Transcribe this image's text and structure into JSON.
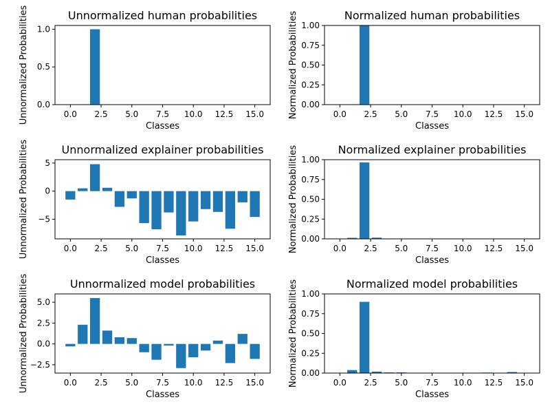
{
  "chart_data": [
    {
      "type": "bar",
      "title": "Unnormalized human probabilities",
      "xlabel": "Classes",
      "ylabel": "Unnormalized Probabilities",
      "x": [
        0,
        1,
        2,
        3,
        4,
        5,
        6,
        7,
        8,
        9,
        10,
        11,
        12,
        13,
        14,
        15
      ],
      "values": [
        0,
        0,
        1.0,
        0,
        0,
        0,
        0,
        0,
        0,
        0,
        0,
        0,
        0,
        0,
        0,
        0
      ],
      "xlim": [
        -1.25,
        16.25
      ],
      "ylim": [
        0,
        1.05
      ],
      "xticks": [
        0,
        2.5,
        5,
        7.5,
        10,
        12.5,
        15
      ],
      "xtick_labels": [
        "0.0",
        "2.5",
        "5.0",
        "7.5",
        "10.0",
        "12.5",
        "15.0"
      ],
      "yticks": [
        0,
        0.5,
        1.0
      ],
      "ytick_labels": [
        "0.0",
        "0.5",
        "1.0"
      ],
      "color": "#1f77b4",
      "grid": false
    },
    {
      "type": "bar",
      "title": "Normalized human probabilities",
      "xlabel": "Classes",
      "ylabel": "Normalized Probabilities",
      "x": [
        0,
        1,
        2,
        3,
        4,
        5,
        6,
        7,
        8,
        9,
        10,
        11,
        12,
        13,
        14,
        15
      ],
      "values": [
        0,
        0,
        1.0,
        0,
        0,
        0,
        0,
        0,
        0,
        0,
        0,
        0,
        0,
        0,
        0,
        0
      ],
      "xlim": [
        -1.25,
        16.25
      ],
      "ylim": [
        0,
        1.0
      ],
      "xticks": [
        0,
        2.5,
        5,
        7.5,
        10,
        12.5,
        15
      ],
      "xtick_labels": [
        "0.0",
        "2.5",
        "5.0",
        "7.5",
        "10.0",
        "12.5",
        "15.0"
      ],
      "yticks": [
        0,
        0.25,
        0.5,
        0.75,
        1.0
      ],
      "ytick_labels": [
        "0.00",
        "0.25",
        "0.50",
        "0.75",
        "1.00"
      ],
      "color": "#1f77b4",
      "grid": false
    },
    {
      "type": "bar",
      "title": "Unnormalized explainer probabilities",
      "xlabel": "Classes",
      "ylabel": "Unnormalized Probabilities",
      "x": [
        0,
        1,
        2,
        3,
        4,
        5,
        6,
        7,
        8,
        9,
        10,
        11,
        12,
        13,
        14,
        15
      ],
      "values": [
        -1.5,
        0.5,
        4.8,
        0.6,
        -2.8,
        -1.3,
        -5.7,
        -6.8,
        -3.8,
        -7.9,
        -5.4,
        -3.2,
        -3.7,
        -6.7,
        -2.0,
        -4.6
      ],
      "xlim": [
        -1.25,
        16.25
      ],
      "ylim": [
        -8.5,
        5.6
      ],
      "xticks": [
        0,
        2.5,
        5,
        7.5,
        10,
        12.5,
        15
      ],
      "xtick_labels": [
        "0.0",
        "2.5",
        "5.0",
        "7.5",
        "10.0",
        "12.5",
        "15.0"
      ],
      "yticks": [
        -5,
        0,
        5
      ],
      "ytick_labels": [
        "−5",
        "0",
        "5"
      ],
      "color": "#1f77b4",
      "grid": false
    },
    {
      "type": "bar",
      "title": "Normalized explainer probabilities",
      "xlabel": "Classes",
      "ylabel": "Normalized Probabilities",
      "x": [
        0,
        1,
        2,
        3,
        4,
        5,
        6,
        7,
        8,
        9,
        10,
        11,
        12,
        13,
        14,
        15
      ],
      "values": [
        0.002,
        0.013,
        0.965,
        0.015,
        0,
        0,
        0,
        0,
        0,
        0,
        0,
        0,
        0,
        0,
        0,
        0
      ],
      "xlim": [
        -1.25,
        16.25
      ],
      "ylim": [
        0,
        1.0
      ],
      "xticks": [
        0,
        2.5,
        5,
        7.5,
        10,
        12.5,
        15
      ],
      "xtick_labels": [
        "0.0",
        "2.5",
        "5.0",
        "7.5",
        "10.0",
        "12.5",
        "15.0"
      ],
      "yticks": [
        0,
        0.25,
        0.5,
        0.75,
        1.0
      ],
      "ytick_labels": [
        "0.00",
        "0.25",
        "0.50",
        "0.75",
        "1.00"
      ],
      "color": "#1f77b4",
      "grid": false
    },
    {
      "type": "bar",
      "title": "Unnormalized model probabilities",
      "xlabel": "Classes",
      "ylabel": "Unnormalized Probabilities",
      "x": [
        0,
        1,
        2,
        3,
        4,
        5,
        6,
        7,
        8,
        9,
        10,
        11,
        12,
        13,
        14,
        15
      ],
      "values": [
        -0.3,
        2.3,
        5.5,
        1.6,
        0.8,
        0.7,
        -1.0,
        -1.9,
        -0.2,
        -2.9,
        -1.6,
        -0.8,
        0.4,
        -2.3,
        1.2,
        -1.8
      ],
      "xlim": [
        -1.25,
        16.25
      ],
      "ylim": [
        -3.5,
        6.0
      ],
      "xticks": [
        0,
        2.5,
        5,
        7.5,
        10,
        12.5,
        15
      ],
      "xtick_labels": [
        "0.0",
        "2.5",
        "5.0",
        "7.5",
        "10.0",
        "12.5",
        "15.0"
      ],
      "yticks": [
        -2.5,
        0,
        2.5,
        5.0
      ],
      "ytick_labels": [
        "−2.5",
        "0.0",
        "2.5",
        "5.0"
      ],
      "color": "#1f77b4",
      "grid": false
    },
    {
      "type": "bar",
      "title": "Normalized model probabilities",
      "xlabel": "Classes",
      "ylabel": "Normalized Probabilities",
      "x": [
        0,
        1,
        2,
        3,
        4,
        5,
        6,
        7,
        8,
        9,
        10,
        11,
        12,
        13,
        14,
        15
      ],
      "values": [
        0.003,
        0.038,
        0.9,
        0.019,
        0.008,
        0.008,
        0.001,
        0.0006,
        0.003,
        0.0002,
        0.0008,
        0.002,
        0.006,
        0.0004,
        0.013,
        0.0006
      ],
      "xlim": [
        -1.25,
        16.25
      ],
      "ylim": [
        0,
        1.0
      ],
      "xticks": [
        0,
        2.5,
        5,
        7.5,
        10,
        12.5,
        15
      ],
      "xtick_labels": [
        "0.0",
        "2.5",
        "5.0",
        "7.5",
        "10.0",
        "12.5",
        "15.0"
      ],
      "yticks": [
        0,
        0.25,
        0.5,
        0.75,
        1.0
      ],
      "ytick_labels": [
        "0.00",
        "0.25",
        "0.50",
        "0.75",
        "1.00"
      ],
      "color": "#1f77b4",
      "grid": false
    }
  ]
}
